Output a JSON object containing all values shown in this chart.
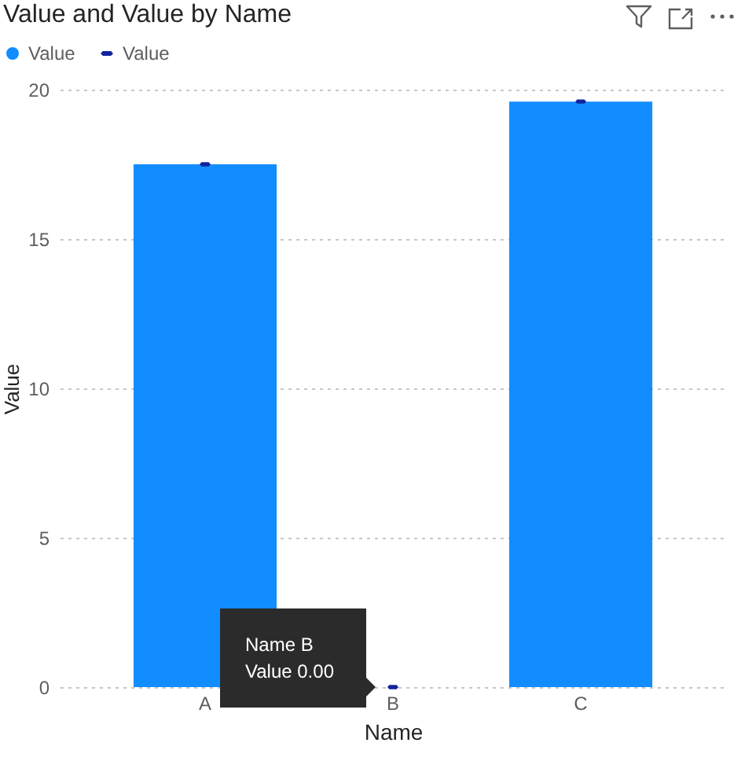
{
  "chart_data": {
    "type": "bar",
    "title": "Value and Value by Name",
    "xlabel": "Name",
    "ylabel": "Value",
    "categories": [
      "A",
      "B",
      "C"
    ],
    "series": [
      {
        "name": "Value",
        "color": "#118dff",
        "values": [
          17.5,
          0,
          19.6
        ]
      },
      {
        "name": "Value",
        "type": "scatter",
        "color": "#12239e",
        "values": [
          17.5,
          0,
          19.6
        ]
      }
    ],
    "ylim": [
      0,
      20
    ],
    "yticks": [
      0,
      5,
      10,
      15,
      20
    ],
    "grid": "y",
    "legend": "top left",
    "annotations": [
      "Name B\nValue 0.00"
    ]
  }
}
